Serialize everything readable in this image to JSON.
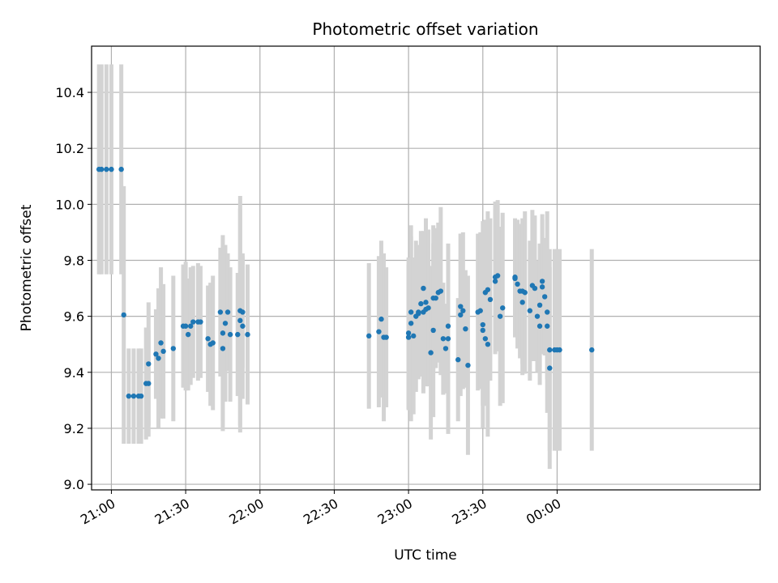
{
  "chart_data": {
    "type": "scatter",
    "title": "Photometric offset variation",
    "xlabel": "UTC time",
    "ylabel": "Photometric offset",
    "xlim": [
      "20:52",
      "01:22"
    ],
    "ylim": [
      8.98,
      10.565
    ],
    "grid": true,
    "x_ticks": [
      "21:00",
      "21:30",
      "22:00",
      "22:30",
      "23:00",
      "23:30",
      "00:00"
    ],
    "y_ticks": [
      9.0,
      9.2,
      9.4,
      9.6,
      9.8,
      10.0,
      10.2,
      10.4
    ],
    "colors": {
      "point": "#1f77b4",
      "errorbar": "#d3d3d3",
      "grid": "#b0b0b0"
    },
    "series": [
      {
        "x": [
          "20:55",
          "20:56",
          "20:58",
          "21:00",
          "21:04",
          "21:05",
          "21:07",
          "21:09",
          "21:11",
          "21:12",
          "21:14",
          "21:15",
          "21:15",
          "21:18",
          "21:19",
          "21:20",
          "21:21",
          "21:25",
          "21:29",
          "21:30",
          "21:31",
          "21:32",
          "21:33",
          "21:35",
          "21:36",
          "21:39",
          "21:40",
          "21:41",
          "21:44",
          "21:45",
          "21:45",
          "21:46",
          "21:47",
          "21:48",
          "21:51",
          "21:52",
          "21:52",
          "21:53",
          "21:53",
          "21:55",
          "22:44",
          "22:48",
          "22:49",
          "22:50",
          "22:51",
          "23:00",
          "23:00",
          "23:01",
          "23:01",
          "23:02",
          "23:03",
          "23:04",
          "23:04",
          "23:05",
          "23:06",
          "23:06",
          "23:07",
          "23:07",
          "23:08",
          "23:09",
          "23:10",
          "23:10",
          "23:11",
          "23:12",
          "23:13",
          "23:14",
          "23:15",
          "23:16",
          "23:16",
          "23:20",
          "23:21",
          "23:21",
          "23:22",
          "23:23",
          "23:24",
          "23:28",
          "23:29",
          "23:30",
          "23:30",
          "23:31",
          "23:31",
          "23:32",
          "23:32",
          "23:33",
          "23:35",
          "23:35",
          "23:36",
          "23:37",
          "23:38",
          "23:43",
          "23:43",
          "23:44",
          "23:45",
          "23:46",
          "23:46",
          "23:47",
          "23:49",
          "23:50",
          "23:51",
          "23:52",
          "23:53",
          "23:53",
          "23:54",
          "23:54",
          "23:55",
          "23:56",
          "23:56",
          "23:57",
          "23:57",
          "23:59",
          "24:00",
          "24:01",
          "24:14"
        ],
        "y": [
          10.125,
          10.125,
          10.125,
          10.125,
          10.125,
          9.605,
          9.315,
          9.315,
          9.315,
          9.315,
          9.36,
          9.43,
          9.36,
          9.465,
          9.45,
          9.505,
          9.475,
          9.485,
          9.565,
          9.565,
          9.535,
          9.565,
          9.58,
          9.58,
          9.58,
          9.52,
          9.5,
          9.505,
          9.615,
          9.54,
          9.485,
          9.575,
          9.615,
          9.535,
          9.535,
          9.62,
          9.585,
          9.615,
          9.565,
          9.535,
          9.53,
          9.545,
          9.59,
          9.525,
          9.525,
          9.54,
          9.525,
          9.575,
          9.615,
          9.53,
          9.6,
          9.61,
          9.615,
          9.645,
          9.7,
          9.615,
          9.625,
          9.65,
          9.63,
          9.47,
          9.55,
          9.665,
          9.665,
          9.685,
          9.69,
          9.52,
          9.485,
          9.565,
          9.52,
          9.445,
          9.635,
          9.605,
          9.62,
          9.555,
          9.425,
          9.615,
          9.62,
          9.55,
          9.57,
          9.52,
          9.685,
          9.5,
          9.695,
          9.66,
          9.725,
          9.74,
          9.745,
          9.6,
          9.63,
          9.74,
          9.735,
          9.715,
          9.69,
          9.65,
          9.69,
          9.685,
          9.62,
          9.71,
          9.7,
          9.6,
          9.565,
          9.64,
          9.705,
          9.725,
          9.67,
          9.615,
          9.565,
          9.415,
          9.48,
          9.48,
          9.48,
          9.48,
          9.48
        ],
        "err": [
          0.375,
          0.375,
          0.375,
          0.375,
          0.375,
          0.46,
          0.17,
          0.17,
          0.17,
          0.17,
          0.2,
          0.22,
          0.19,
          0.16,
          0.25,
          0.27,
          0.24,
          0.26,
          0.22,
          0.23,
          0.2,
          0.21,
          0.2,
          0.21,
          0.2,
          0.19,
          0.22,
          0.24,
          0.23,
          0.35,
          0.26,
          0.28,
          0.21,
          0.24,
          0.22,
          0.41,
          0.4,
          0.2,
          0.26,
          0.25,
          0.26,
          0.27,
          0.28,
          0.3,
          0.25,
          0.27,
          0.26,
          0.35,
          0.27,
          0.28,
          0.27,
          0.23,
          0.24,
          0.26,
          0.19,
          0.29,
          0.25,
          0.3,
          0.28,
          0.31,
          0.31,
          0.26,
          0.25,
          0.25,
          0.3,
          0.2,
          0.16,
          0.23,
          0.34,
          0.22,
          0.26,
          0.29,
          0.28,
          0.21,
          0.32,
          0.28,
          0.28,
          0.27,
          0.37,
          0.24,
          0.26,
          0.33,
          0.28,
          0.29,
          0.26,
          0.27,
          0.27,
          0.32,
          0.34,
          0.21,
          0.21,
          0.23,
          0.24,
          0.26,
          0.26,
          0.29,
          0.25,
          0.27,
          0.26,
          0.2,
          0.21,
          0.22,
          0.24,
          0.24,
          0.21,
          0.36,
          0.19,
          0.36,
          0.36,
          0.36,
          0.36,
          0.36,
          0.36
        ]
      }
    ]
  }
}
